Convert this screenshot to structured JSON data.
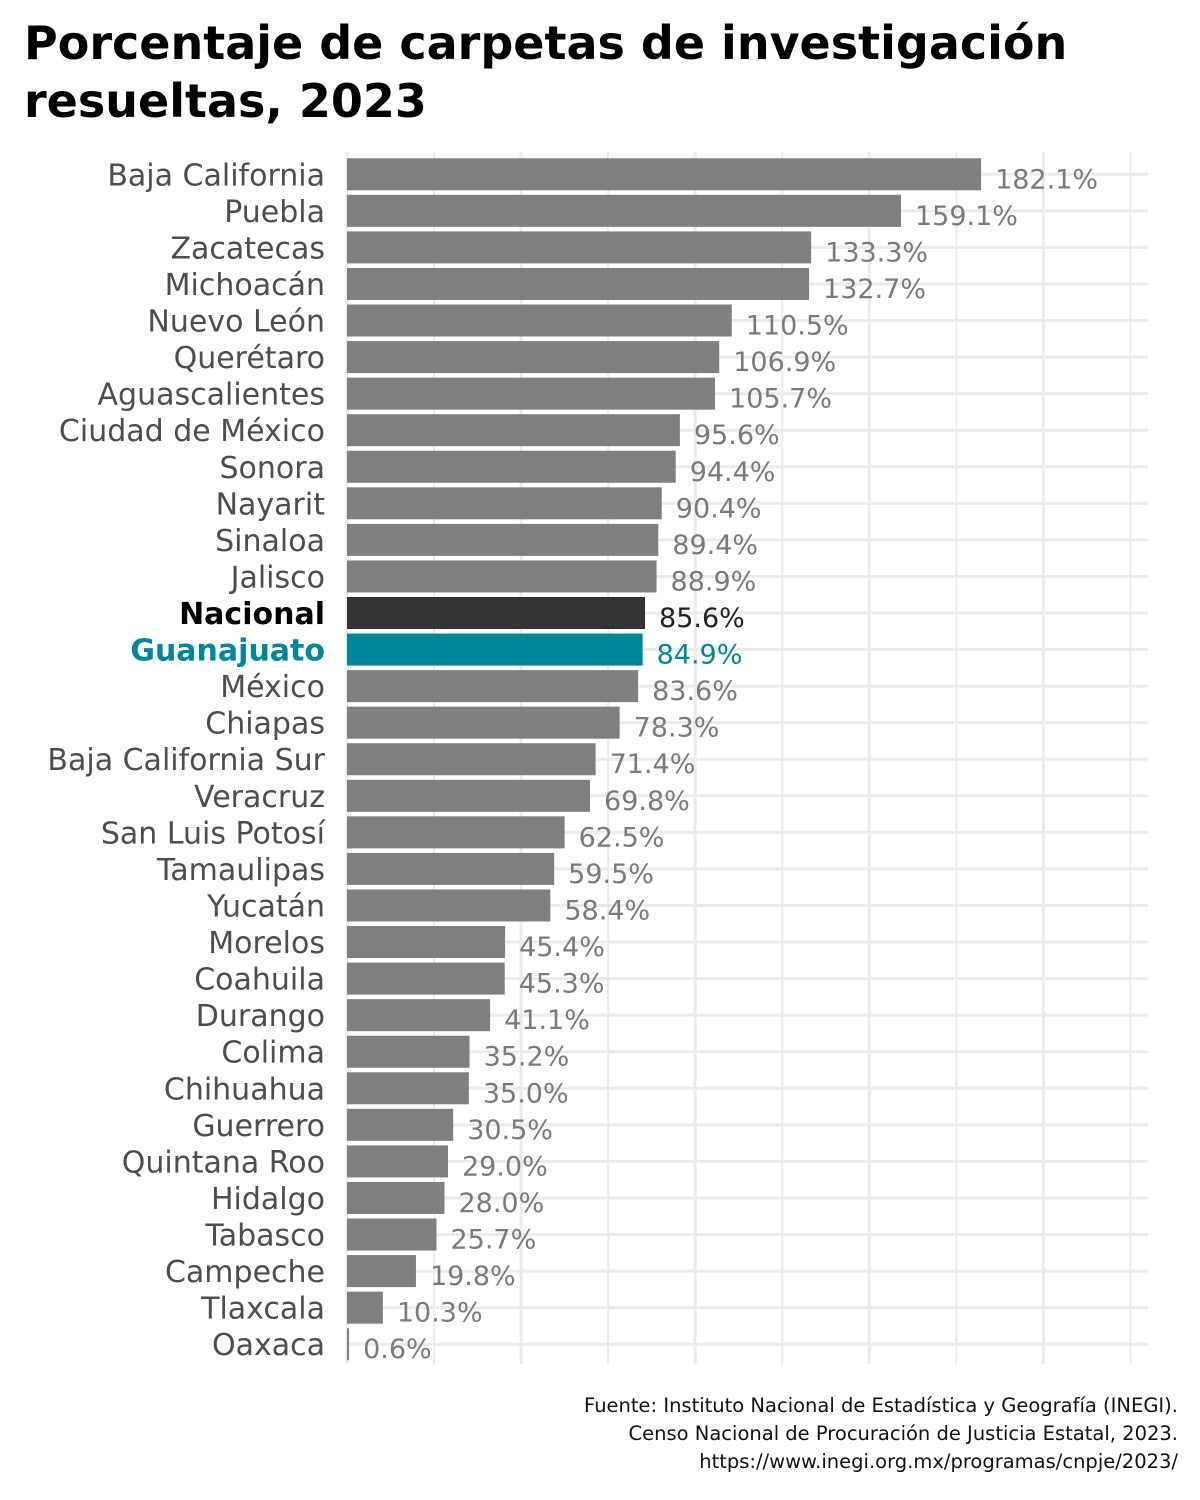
{
  "colors": {
    "default_bar": "#7f7f7f",
    "national_bar": "#333333",
    "highlight_bar": "#008699",
    "default_text": "#4d4d4d",
    "national_text": "#000000",
    "highlight_text": "#008699",
    "value_text": "#7a7a7a",
    "national_value_text": "#222222",
    "grid": "#ebebeb"
  },
  "chart_data": {
    "type": "bar",
    "orientation": "horizontal",
    "title": "Porcentaje de carpetas de investigación resueltas, 2023",
    "xlabel": "",
    "ylabel": "",
    "xlim": [
      0,
      230
    ],
    "grid": true,
    "x_tick_labels_shown": false,
    "value_suffix": "%",
    "categories": [
      "Baja California",
      "Puebla",
      "Zacatecas",
      "Michoacán",
      "Nuevo León",
      "Querétaro",
      "Aguascalientes",
      "Ciudad de México",
      "Sonora",
      "Nayarit",
      "Sinaloa",
      "Jalisco",
      "Nacional",
      "Guanajuato",
      "México",
      "Chiapas",
      "Baja California Sur",
      "Veracruz",
      "San Luis Potosí",
      "Tamaulipas",
      "Yucatán",
      "Morelos",
      "Coahuila",
      "Durango",
      "Colima",
      "Chihuahua",
      "Guerrero",
      "Quintana Roo",
      "Hidalgo",
      "Tabasco",
      "Campeche",
      "Tlaxcala",
      "Oaxaca"
    ],
    "values": [
      182.1,
      159.1,
      133.3,
      132.7,
      110.5,
      106.9,
      105.7,
      95.6,
      94.4,
      90.4,
      89.4,
      88.9,
      85.6,
      84.9,
      83.6,
      78.3,
      71.4,
      69.8,
      62.5,
      59.5,
      58.4,
      45.4,
      45.3,
      41.1,
      35.2,
      35.0,
      30.5,
      29.0,
      28.0,
      25.7,
      19.8,
      10.3,
      0.6
    ],
    "value_labels": [
      "182.1%",
      "159.1%",
      "133.3%",
      "132.7%",
      "110.5%",
      "106.9%",
      "105.7%",
      "95.6%",
      "94.4%",
      "90.4%",
      "89.4%",
      "88.9%",
      "85.6%",
      "84.9%",
      "83.6%",
      "78.3%",
      "71.4%",
      "69.8%",
      "62.5%",
      "59.5%",
      "58.4%",
      "45.4%",
      "45.3%",
      "41.1%",
      "35.2%",
      "35.0%",
      "30.5%",
      "29.0%",
      "28.0%",
      "25.7%",
      "19.8%",
      "10.3%",
      "0.6%"
    ],
    "national_category": "Nacional",
    "highlight_category": "Guanajuato"
  },
  "source": {
    "line1": "Fuente: Instituto Nacional de Estadística y Geografía (INEGI).",
    "line2": "Censo Nacional de Procuración de Justicia Estatal, 2023.",
    "line3": "https://www.inegi.org.mx/programas/cnpje/2023/"
  }
}
